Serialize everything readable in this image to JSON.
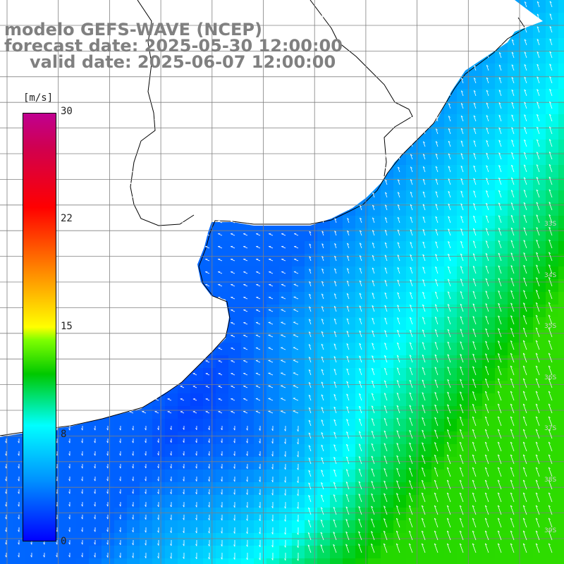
{
  "title": {
    "model": "modelo GEFS-WAVE (NCEP)",
    "forecast": "forecast date: 2025-05-30 12:00:00",
    "valid": "valid date: 2025-06-07 12:00:00"
  },
  "colorbar": {
    "unit": "[m/s]",
    "ticks": [
      "30",
      "22",
      "15",
      "8",
      "0"
    ],
    "tick_values": [
      30,
      22,
      15,
      8,
      0
    ],
    "range": [
      0,
      30
    ],
    "colors": [
      "#0000ff",
      "#0090ff",
      "#00ffff",
      "#00c800",
      "#7fff00",
      "#ffff00",
      "#ff8000",
      "#ff0000",
      "#d00050",
      "#c00090"
    ]
  },
  "map": {
    "land_color": "#ffffff",
    "coastline_color": "#000000",
    "grid_color": "#808080",
    "arrow_color": "#ffffff",
    "gridlines": true,
    "lat_labels": [
      "33S",
      "34S",
      "35S",
      "36S",
      "37S",
      "38S",
      "39S"
    ]
  }
}
